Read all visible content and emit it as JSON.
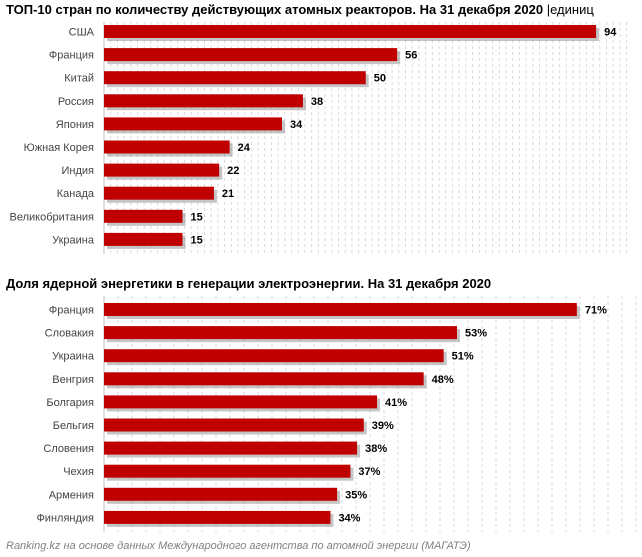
{
  "chart_data": [
    {
      "type": "bar",
      "orientation": "horizontal",
      "title": "ТОП-10 стран по количеству действующих атомных реакторов. На 31 декабря 2020",
      "unit": "|единиц",
      "categories": [
        "США",
        "Франция",
        "Китай",
        "Россия",
        "Япония",
        "Южная Корея",
        "Индия",
        "Канада",
        "Великобритания",
        "Украина"
      ],
      "values": [
        94,
        56,
        50,
        38,
        34,
        24,
        22,
        21,
        15,
        15
      ],
      "value_labels": [
        "94",
        "56",
        "50",
        "38",
        "34",
        "24",
        "22",
        "21",
        "15",
        "15"
      ],
      "xlim": [
        0,
        100
      ],
      "grid": true,
      "bar_color": "#c00000"
    },
    {
      "type": "bar",
      "orientation": "horizontal",
      "title": "Доля ядерной энергетики в генерации электроэнергии. На 31 декабря 2020",
      "categories": [
        "Франция",
        "Словакия",
        "Украина",
        "Венгрия",
        "Болгария",
        "Бельгия",
        "Словения",
        "Чехия",
        "Армения",
        "Финляндия"
      ],
      "values": [
        71,
        53,
        51,
        48,
        41,
        39,
        38,
        37,
        35,
        34
      ],
      "value_labels": [
        "71%",
        "53%",
        "51%",
        "48%",
        "41%",
        "39%",
        "38%",
        "37%",
        "35%",
        "34%"
      ],
      "xlim": [
        0,
        80
      ],
      "grid": true,
      "bar_color": "#c00000"
    }
  ],
  "footer": "Ranking.kz на основе данных Международного агентства по атомной энергии (МАГАТЭ)"
}
